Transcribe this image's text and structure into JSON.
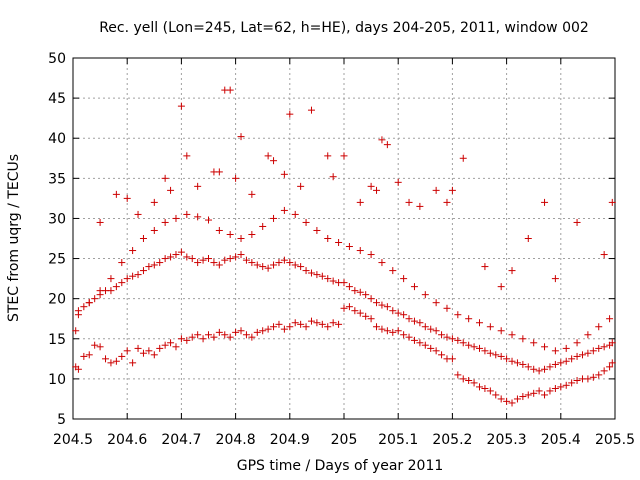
{
  "chart_data": {
    "type": "scatter",
    "title": "Rec. yell (Lon=245, Lat=62, h=HE), days 204-205, 2011, window 002",
    "xlabel": "GPS time / Days of year 2011",
    "ylabel": "STEC from uqrg / TECUs",
    "xlim": [
      204.5,
      205.5
    ],
    "ylim": [
      5,
      50
    ],
    "xticks": [
      "204.5",
      "204.6",
      "204.7",
      "204.8",
      "204.9",
      "205",
      "205.1",
      "205.2",
      "205.3",
      "205.4",
      "205.5"
    ],
    "yticks": [
      "5",
      "10",
      "15",
      "20",
      "25",
      "30",
      "35",
      "40",
      "45",
      "50"
    ],
    "grid": true,
    "marker": "+",
    "color": "#cc0000",
    "series": [
      {
        "x": [
          204.505,
          204.51,
          204.52,
          204.53,
          204.54,
          204.55,
          204.56,
          204.57,
          204.58,
          204.59,
          204.6,
          204.61,
          204.62,
          204.63,
          204.64,
          204.65,
          204.66,
          204.67,
          204.68,
          204.69,
          204.7,
          204.71,
          204.72,
          204.73,
          204.74,
          204.75,
          204.76,
          204.77,
          204.78,
          204.79,
          204.8,
          204.81,
          204.82,
          204.83,
          204.84,
          204.85,
          204.86,
          204.87,
          204.88,
          204.89,
          204.9,
          204.91,
          204.92,
          204.93,
          204.94,
          204.95,
          204.96,
          204.97,
          204.98,
          204.99,
          205.0,
          205.01,
          205.02,
          205.03,
          205.04,
          205.05,
          205.06,
          205.07,
          205.08,
          205.09,
          205.1,
          205.11,
          205.12,
          205.13,
          205.14,
          205.15,
          205.16,
          205.17,
          205.18,
          205.19,
          205.2,
          205.21,
          205.22,
          205.23,
          205.24,
          205.25,
          205.26,
          205.27,
          205.28,
          205.29,
          205.3,
          205.31,
          205.32,
          205.33,
          205.34,
          205.35,
          205.36,
          205.37,
          205.38,
          205.39,
          205.4,
          205.41,
          205.42,
          205.43,
          205.44,
          205.45,
          205.46,
          205.47,
          205.48,
          205.49,
          205.495
        ],
        "y": [
          11.5,
          11.2,
          12.8,
          13.0,
          14.2,
          14.0,
          12.5,
          12.0,
          12.2,
          12.8,
          13.5,
          12.0,
          13.8,
          13.2,
          13.5,
          13.0,
          13.8,
          14.2,
          14.5,
          14.0,
          15.0,
          14.8,
          15.2,
          15.5,
          15.0,
          15.5,
          15.2,
          15.8,
          15.5,
          15.2,
          15.8,
          16.0,
          15.5,
          15.2,
          15.8,
          16.0,
          16.2,
          16.5,
          16.8,
          16.2,
          16.5,
          17.0,
          16.8,
          16.5,
          17.2,
          17.0,
          16.8,
          16.5,
          17.0,
          16.8,
          18.8,
          19.0,
          18.5,
          18.2,
          17.8,
          17.5,
          16.5,
          16.2,
          16.0,
          15.8,
          16.0,
          15.5,
          15.2,
          14.8,
          14.5,
          14.2,
          13.8,
          13.5,
          13.0,
          12.5,
          12.5,
          10.5,
          10.0,
          9.8,
          9.5,
          9.0,
          8.8,
          8.5,
          8.0,
          7.5,
          7.2,
          7.0,
          7.5,
          7.8,
          8.0,
          8.2,
          8.5,
          8.0,
          8.5,
          8.8,
          9.0,
          9.2,
          9.5,
          9.8,
          10.0,
          10.0,
          10.2,
          10.5,
          11.0,
          11.5,
          12.0
        ]
      },
      {
        "x": [
          204.505,
          204.51,
          204.52,
          204.53,
          204.54,
          204.55,
          204.56,
          204.57,
          204.58,
          204.59,
          204.6,
          204.61,
          204.62,
          204.63,
          204.64,
          204.65,
          204.66,
          204.67,
          204.68,
          204.69,
          204.7,
          204.71,
          204.72,
          204.73,
          204.74,
          204.75,
          204.76,
          204.77,
          204.78,
          204.79,
          204.8,
          204.81,
          204.82,
          204.83,
          204.84,
          204.85,
          204.86,
          204.87,
          204.88,
          204.89,
          204.9,
          204.91,
          204.92,
          204.93,
          204.94,
          204.95,
          204.96,
          204.97,
          204.98,
          204.99,
          205.0,
          205.01,
          205.02,
          205.03,
          205.04,
          205.05,
          205.06,
          205.07,
          205.08,
          205.09,
          205.1,
          205.11,
          205.12,
          205.13,
          205.14,
          205.15,
          205.16,
          205.17,
          205.18,
          205.19,
          205.2,
          205.21,
          205.22,
          205.23,
          205.24,
          205.25,
          205.26,
          205.27,
          205.28,
          205.29,
          205.3,
          205.31,
          205.32,
          205.33,
          205.34,
          205.35,
          205.36,
          205.37,
          205.38,
          205.39,
          205.4,
          205.41,
          205.42,
          205.43,
          205.44,
          205.45,
          205.46,
          205.47,
          205.48,
          205.49,
          205.495
        ],
        "y": [
          16.0,
          18.5,
          19.0,
          19.5,
          20.0,
          20.5,
          21.0,
          21.0,
          21.5,
          22.0,
          22.5,
          22.8,
          23.0,
          23.5,
          24.0,
          24.2,
          24.5,
          25.0,
          25.2,
          25.5,
          25.8,
          25.2,
          25.0,
          24.5,
          24.8,
          25.0,
          24.5,
          24.2,
          24.8,
          25.0,
          25.2,
          25.5,
          24.8,
          24.5,
          24.2,
          24.0,
          23.8,
          24.2,
          24.5,
          24.8,
          24.5,
          24.2,
          24.0,
          23.5,
          23.2,
          23.0,
          22.8,
          22.5,
          22.2,
          22.0,
          22.0,
          21.5,
          21.0,
          20.8,
          20.5,
          20.0,
          19.5,
          19.2,
          19.0,
          18.5,
          18.2,
          18.0,
          17.5,
          17.2,
          17.0,
          16.5,
          16.2,
          16.0,
          15.5,
          15.2,
          15.0,
          14.8,
          14.5,
          14.2,
          14.0,
          13.8,
          13.5,
          13.2,
          13.0,
          12.8,
          12.5,
          12.2,
          12.0,
          11.8,
          11.5,
          11.2,
          11.0,
          11.2,
          11.5,
          11.8,
          12.0,
          12.2,
          12.5,
          12.8,
          13.0,
          13.2,
          13.5,
          13.8,
          14.0,
          14.2,
          14.5
        ]
      },
      {
        "x": [
          204.51,
          204.53,
          204.55,
          204.57,
          204.59,
          204.61,
          204.63,
          204.65,
          204.67,
          204.69,
          204.71,
          204.73,
          204.75,
          204.77,
          204.79,
          204.81,
          204.83,
          204.85,
          204.87,
          204.89,
          204.91,
          204.93,
          204.95,
          204.97,
          204.99,
          205.01,
          205.03,
          205.05,
          205.07,
          205.09,
          205.11,
          205.13,
          205.15,
          205.17,
          205.19,
          205.21,
          205.23,
          205.25,
          205.27,
          205.29,
          205.31,
          205.33,
          205.35,
          205.37,
          205.39,
          205.41,
          205.43,
          205.45,
          205.47,
          205.49
        ],
        "y": [
          18.0,
          19.5,
          21.0,
          22.5,
          24.5,
          26.0,
          27.5,
          28.5,
          29.5,
          30.0,
          30.5,
          30.2,
          29.8,
          28.5,
          28.0,
          27.5,
          28.0,
          29.0,
          30.0,
          31.0,
          30.5,
          29.5,
          28.5,
          27.5,
          27.0,
          26.5,
          26.0,
          25.5,
          24.5,
          23.5,
          22.5,
          21.5,
          20.5,
          19.5,
          18.8,
          18.0,
          17.5,
          17.0,
          16.5,
          16.0,
          15.5,
          15.0,
          14.5,
          14.0,
          13.5,
          13.8,
          14.5,
          15.5,
          16.5,
          17.5
        ]
      },
      {
        "x": [
          204.55,
          204.58,
          204.6,
          204.62,
          204.65,
          204.67,
          204.68,
          204.7,
          204.71,
          204.73,
          204.76,
          204.77,
          204.78,
          204.79,
          204.8,
          204.81,
          204.83,
          204.86,
          204.87,
          204.89,
          204.9,
          204.92,
          204.94,
          204.97,
          204.98,
          205.0,
          205.03,
          205.05,
          205.06,
          205.07,
          205.08,
          205.1,
          205.12,
          205.14,
          205.17,
          205.19,
          205.2,
          205.22,
          205.26,
          205.29,
          205.31,
          205.34,
          205.37,
          205.39,
          205.43,
          205.48,
          205.495
        ],
        "y": [
          29.5,
          33.0,
          32.5,
          30.5,
          32.0,
          35.0,
          33.5,
          44.0,
          37.8,
          34.0,
          35.8,
          35.8,
          46.0,
          46.0,
          35.0,
          40.2,
          33.0,
          37.8,
          37.2,
          35.5,
          43.0,
          34.0,
          43.5,
          37.8,
          35.2,
          37.8,
          32.0,
          34.0,
          33.5,
          39.8,
          39.2,
          34.5,
          32.0,
          31.5,
          33.5,
          32.0,
          33.5,
          37.5,
          24.0,
          21.5,
          23.5,
          27.5,
          32.0,
          22.5,
          29.5,
          25.5,
          32.0
        ]
      }
    ]
  }
}
